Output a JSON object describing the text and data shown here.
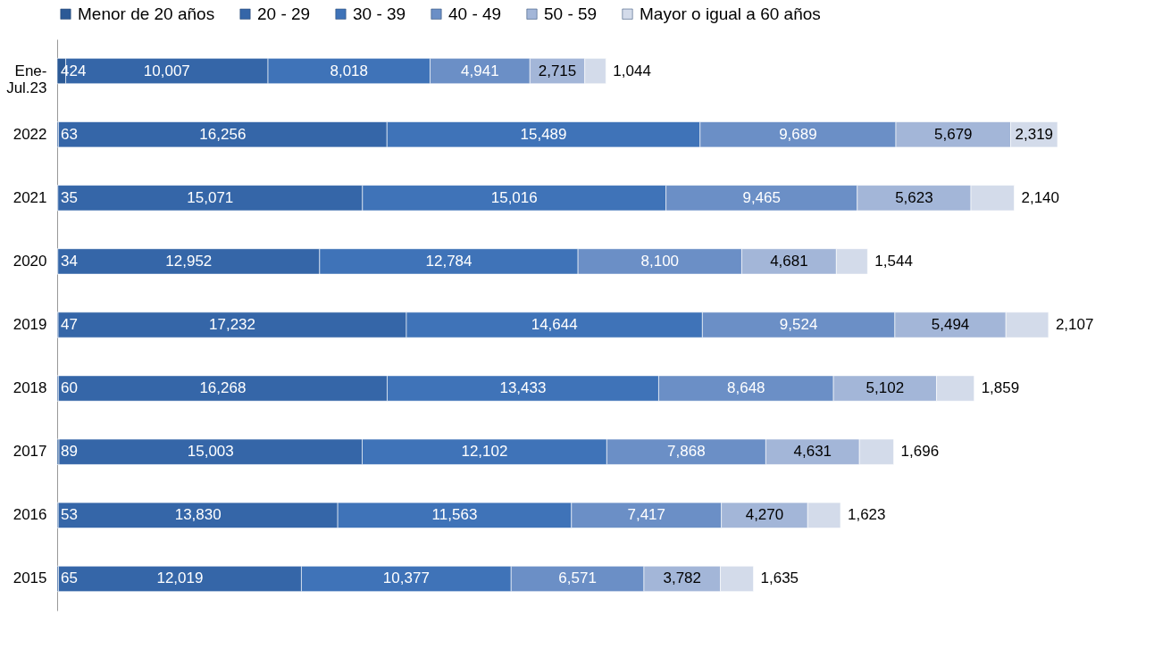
{
  "chart_data": {
    "type": "bar",
    "orientation": "horizontal",
    "stacked": true,
    "legend": "top",
    "grid": false,
    "categories": [
      "Ene-Jul.23",
      "2022",
      "2021",
      "2020",
      "2019",
      "2018",
      "2017",
      "2016",
      "2015"
    ],
    "series": [
      {
        "name": "Menor de 20 años",
        "color": "#2c5a96",
        "values": [
          424,
          63,
          35,
          34,
          47,
          60,
          89,
          53,
          65
        ],
        "value_labels": [
          "424",
          "63",
          "35",
          "34",
          "47",
          "60",
          "89",
          "53",
          "65"
        ]
      },
      {
        "name": "20 - 29",
        "color": "#3566a8",
        "values": [
          10007,
          16256,
          15071,
          12952,
          17232,
          16268,
          15003,
          13830,
          12019
        ],
        "value_labels": [
          "10,007",
          "16,256",
          "15,071",
          "12,952",
          "17,232",
          "16,268",
          "15,003",
          "13,830",
          "12,019"
        ]
      },
      {
        "name": "30 - 39",
        "color": "#3f73b8",
        "values": [
          8018,
          15489,
          15016,
          12784,
          14644,
          13433,
          12102,
          11563,
          10377
        ],
        "value_labels": [
          "8,018",
          "15,489",
          "15,016",
          "12,784",
          "14,644",
          "13,433",
          "12,102",
          "11,563",
          "10,377"
        ]
      },
      {
        "name": "40 - 49",
        "color": "#6b8fc6",
        "values": [
          4941,
          9689,
          9465,
          8100,
          9524,
          8648,
          7868,
          7417,
          6571
        ],
        "value_labels": [
          "4,941",
          "9,689",
          "9,465",
          "8,100",
          "9,524",
          "8,648",
          "7,868",
          "7,417",
          "6,571"
        ]
      },
      {
        "name": "50 - 59",
        "color": "#a3b6d8",
        "values": [
          2715,
          5679,
          5623,
          4681,
          5494,
          5102,
          4631,
          4270,
          3782
        ],
        "value_labels": [
          "2,715",
          "5,679",
          "5,623",
          "4,681",
          "5,494",
          "5,102",
          "4,631",
          "4,270",
          "3,782"
        ]
      },
      {
        "name": "Mayor o igual a 60 años",
        "color": "#d3dbea",
        "values": [
          1044,
          2319,
          2140,
          1544,
          2107,
          1859,
          1696,
          1623,
          1635
        ],
        "value_labels": [
          "1,044",
          "2,319",
          "2,140",
          "1,544",
          "2,107",
          "1,859",
          "1,696",
          "1,623",
          "1,635"
        ]
      }
    ]
  }
}
